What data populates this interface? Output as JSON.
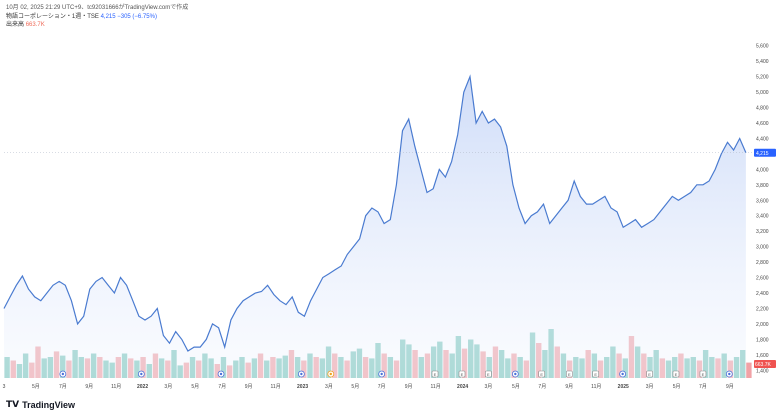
{
  "header": {
    "line1": "10月 02, 2025 21:29 UTC+9、tc92031666がTradingView.comで作成",
    "symbol": "物語コーポレーション・1週・TSE",
    "legend_value": "4,215 −305 (−6.75%)",
    "volume_label": "出来高",
    "volume_value": "663.7K"
  },
  "footer": {
    "logo_text": "TradingView",
    "logo_icon": "tv-logo-icon"
  },
  "colors": {
    "line": "#4a7bd0",
    "area_top": "#c9d8f7",
    "area_bottom": "#f2f6fe",
    "vol_up": "#7fc8bd",
    "vol_down": "#f1a2a6",
    "last_price_bg": "#2962ff",
    "last_vol_bg": "#ef5350"
  },
  "chart_data": {
    "type": "area",
    "ylim": [
      1300,
      5700
    ],
    "y_ticks": [
      "1,400",
      "1,600",
      "1,800",
      "2,000",
      "2,200",
      "2,400",
      "2,600",
      "2,800",
      "3,000",
      "3,200",
      "3,400",
      "3,600",
      "3,800",
      "4,000",
      "4,200",
      "4,400",
      "4,600",
      "4,800",
      "5,000",
      "5,200",
      "5,400",
      "5,600"
    ],
    "y_tick_values": [
      1400,
      1600,
      1800,
      2000,
      2200,
      2400,
      2600,
      2800,
      3000,
      3200,
      3400,
      3600,
      3800,
      4000,
      4200,
      4400,
      4600,
      4800,
      5000,
      5200,
      5400,
      5600
    ],
    "last_price_label": "4,215",
    "last_price": 4215,
    "last_volume_label": "663.7K",
    "x_labels": [
      {
        "t": 0.0,
        "text": "3"
      },
      {
        "t": 5.2,
        "text": "5月"
      },
      {
        "t": 9.6,
        "text": "7月"
      },
      {
        "t": 13.9,
        "text": "9月"
      },
      {
        "t": 18.3,
        "text": "11月"
      },
      {
        "t": 22.6,
        "text": "2022",
        "bold": true
      },
      {
        "t": 26.8,
        "text": "3月"
      },
      {
        "t": 31.2,
        "text": "5月"
      },
      {
        "t": 35.6,
        "text": "7月"
      },
      {
        "t": 39.9,
        "text": "9月"
      },
      {
        "t": 44.3,
        "text": "11月"
      },
      {
        "t": 48.7,
        "text": "2023",
        "bold": true
      },
      {
        "t": 53.0,
        "text": "3月"
      },
      {
        "t": 57.3,
        "text": "5月"
      },
      {
        "t": 61.6,
        "text": "7月"
      },
      {
        "t": 66.0,
        "text": "9月"
      },
      {
        "t": 70.4,
        "text": "11月"
      },
      {
        "t": 74.8,
        "text": "2024",
        "bold": true
      },
      {
        "t": 79.0,
        "text": "3月"
      },
      {
        "t": 83.5,
        "text": "5月"
      },
      {
        "t": 87.8,
        "text": "7月"
      },
      {
        "t": 92.2,
        "text": "9月"
      },
      {
        "t": 96.6,
        "text": "11月"
      },
      {
        "t": 101.0,
        "text": "2025",
        "bold": true
      },
      {
        "t": 105.3,
        "text": "3月"
      },
      {
        "t": 109.7,
        "text": "5月"
      },
      {
        "t": 114.0,
        "text": "7月"
      },
      {
        "t": 118.4,
        "text": "9月"
      }
    ],
    "t_range": [
      0,
      122
    ],
    "event_markers": [
      {
        "t": 9.6,
        "kind": "D"
      },
      {
        "t": 22.4,
        "kind": "D"
      },
      {
        "t": 35.4,
        "kind": "D"
      },
      {
        "t": 48.5,
        "kind": "D"
      },
      {
        "t": 53.3,
        "kind": "S"
      },
      {
        "t": 61.6,
        "kind": "D"
      },
      {
        "t": 70.3,
        "kind": "E"
      },
      {
        "t": 74.7,
        "kind": "E"
      },
      {
        "t": 79.0,
        "kind": "E"
      },
      {
        "t": 83.4,
        "kind": "D"
      },
      {
        "t": 87.7,
        "kind": "E"
      },
      {
        "t": 92.2,
        "kind": "E"
      },
      {
        "t": 96.5,
        "kind": "E"
      },
      {
        "t": 100.9,
        "kind": "D"
      },
      {
        "t": 105.3,
        "kind": "E"
      },
      {
        "t": 109.6,
        "kind": "E"
      },
      {
        "t": 114.0,
        "kind": "E"
      },
      {
        "t": 118.3,
        "kind": "D"
      }
    ],
    "series": [
      {
        "points": [
          [
            0,
            2200
          ],
          [
            1,
            2350
          ],
          [
            2,
            2500
          ],
          [
            3,
            2620
          ],
          [
            4,
            2450
          ],
          [
            5,
            2350
          ],
          [
            6,
            2300
          ],
          [
            7,
            2400
          ],
          [
            8,
            2500
          ],
          [
            9,
            2550
          ],
          [
            10,
            2500
          ],
          [
            11,
            2300
          ],
          [
            12,
            2000
          ],
          [
            13,
            2100
          ],
          [
            14,
            2450
          ],
          [
            15,
            2550
          ],
          [
            16,
            2600
          ],
          [
            17,
            2500
          ],
          [
            18,
            2400
          ],
          [
            19,
            2600
          ],
          [
            20,
            2500
          ],
          [
            21,
            2300
          ],
          [
            22,
            2100
          ],
          [
            23,
            2050
          ],
          [
            24,
            2100
          ],
          [
            25,
            2200
          ],
          [
            26,
            1850
          ],
          [
            27,
            1750
          ],
          [
            28,
            1900
          ],
          [
            29,
            1800
          ],
          [
            30,
            1650
          ],
          [
            31,
            1700
          ],
          [
            32,
            1700
          ],
          [
            33,
            1800
          ],
          [
            34,
            2000
          ],
          [
            35,
            1950
          ],
          [
            36,
            1700
          ],
          [
            37,
            2050
          ],
          [
            38,
            2200
          ],
          [
            39,
            2300
          ],
          [
            40,
            2350
          ],
          [
            41,
            2400
          ],
          [
            42,
            2420
          ],
          [
            43,
            2500
          ],
          [
            44,
            2380
          ],
          [
            45,
            2300
          ],
          [
            46,
            2250
          ],
          [
            47,
            2350
          ],
          [
            48,
            2150
          ],
          [
            49,
            2100
          ],
          [
            50,
            2300
          ],
          [
            51,
            2450
          ],
          [
            52,
            2600
          ],
          [
            53,
            2650
          ],
          [
            54,
            2700
          ],
          [
            55,
            2750
          ],
          [
            56,
            2900
          ],
          [
            57,
            3000
          ],
          [
            58,
            3100
          ],
          [
            59,
            3400
          ],
          [
            60,
            3500
          ],
          [
            61,
            3450
          ],
          [
            62,
            3300
          ],
          [
            63,
            3350
          ],
          [
            64,
            3800
          ],
          [
            65,
            4500
          ],
          [
            66,
            4650
          ],
          [
            67,
            4300
          ],
          [
            68,
            4000
          ],
          [
            69,
            3700
          ],
          [
            70,
            3750
          ],
          [
            71,
            4000
          ],
          [
            72,
            3900
          ],
          [
            73,
            4100
          ],
          [
            74,
            4450
          ],
          [
            75,
            5000
          ],
          [
            76,
            5200
          ],
          [
            77,
            4600
          ],
          [
            78,
            4750
          ],
          [
            79,
            4600
          ],
          [
            80,
            4650
          ],
          [
            81,
            4550
          ],
          [
            82,
            4300
          ],
          [
            83,
            3800
          ],
          [
            84,
            3500
          ],
          [
            85,
            3300
          ],
          [
            86,
            3400
          ],
          [
            87,
            3450
          ],
          [
            88,
            3550
          ],
          [
            89,
            3300
          ],
          [
            90,
            3400
          ],
          [
            91,
            3500
          ],
          [
            92,
            3600
          ],
          [
            93,
            3850
          ],
          [
            94,
            3650
          ],
          [
            95,
            3550
          ],
          [
            96,
            3550
          ],
          [
            97,
            3600
          ],
          [
            98,
            3650
          ],
          [
            99,
            3500
          ],
          [
            100,
            3450
          ],
          [
            101,
            3250
          ],
          [
            102,
            3300
          ],
          [
            103,
            3350
          ],
          [
            104,
            3250
          ],
          [
            105,
            3300
          ],
          [
            106,
            3350
          ],
          [
            107,
            3450
          ],
          [
            108,
            3550
          ],
          [
            109,
            3650
          ],
          [
            110,
            3600
          ],
          [
            111,
            3650
          ],
          [
            112,
            3700
          ],
          [
            113,
            3800
          ],
          [
            114,
            3800
          ],
          [
            115,
            3850
          ],
          [
            116,
            4000
          ],
          [
            117,
            4200
          ],
          [
            118,
            4350
          ],
          [
            119,
            4250
          ],
          [
            120,
            4400
          ],
          [
            121,
            4215
          ]
        ]
      }
    ],
    "volume": {
      "max": 100,
      "bars": [
        [
          30,
          1
        ],
        [
          25,
          0
        ],
        [
          20,
          1
        ],
        [
          35,
          1
        ],
        [
          22,
          0
        ],
        [
          45,
          0
        ],
        [
          28,
          1
        ],
        [
          30,
          1
        ],
        [
          38,
          0
        ],
        [
          32,
          1
        ],
        [
          25,
          0
        ],
        [
          40,
          1
        ],
        [
          30,
          1
        ],
        [
          28,
          0
        ],
        [
          35,
          1
        ],
        [
          30,
          0
        ],
        [
          25,
          1
        ],
        [
          22,
          1
        ],
        [
          30,
          0
        ],
        [
          35,
          1
        ],
        [
          28,
          0
        ],
        [
          25,
          1
        ],
        [
          30,
          0
        ],
        [
          20,
          1
        ],
        [
          35,
          0
        ],
        [
          28,
          1
        ],
        [
          25,
          0
        ],
        [
          40,
          1
        ],
        [
          18,
          1
        ],
        [
          22,
          0
        ],
        [
          30,
          1
        ],
        [
          25,
          0
        ],
        [
          35,
          1
        ],
        [
          28,
          1
        ],
        [
          20,
          0
        ],
        [
          30,
          1
        ],
        [
          18,
          0
        ],
        [
          25,
          1
        ],
        [
          30,
          1
        ],
        [
          22,
          0
        ],
        [
          28,
          1
        ],
        [
          35,
          0
        ],
        [
          25,
          1
        ],
        [
          30,
          0
        ],
        [
          28,
          1
        ],
        [
          32,
          1
        ],
        [
          40,
          0
        ],
        [
          30,
          1
        ],
        [
          25,
          0
        ],
        [
          35,
          1
        ],
        [
          30,
          0
        ],
        [
          28,
          1
        ],
        [
          45,
          1
        ],
        [
          35,
          0
        ],
        [
          30,
          1
        ],
        [
          25,
          0
        ],
        [
          38,
          1
        ],
        [
          42,
          1
        ],
        [
          30,
          0
        ],
        [
          28,
          1
        ],
        [
          50,
          1
        ],
        [
          35,
          0
        ],
        [
          30,
          1
        ],
        [
          25,
          0
        ],
        [
          55,
          1
        ],
        [
          48,
          1
        ],
        [
          40,
          0
        ],
        [
          30,
          1
        ],
        [
          35,
          0
        ],
        [
          45,
          1
        ],
        [
          52,
          1
        ],
        [
          40,
          0
        ],
        [
          35,
          1
        ],
        [
          60,
          1
        ],
        [
          42,
          0
        ],
        [
          55,
          1
        ],
        [
          48,
          1
        ],
        [
          38,
          0
        ],
        [
          30,
          1
        ],
        [
          45,
          0
        ],
        [
          40,
          1
        ],
        [
          28,
          1
        ],
        [
          35,
          0
        ],
        [
          30,
          1
        ],
        [
          25,
          0
        ],
        [
          65,
          1
        ],
        [
          50,
          0
        ],
        [
          40,
          1
        ],
        [
          70,
          1
        ],
        [
          45,
          0
        ],
        [
          35,
          1
        ],
        [
          25,
          0
        ],
        [
          30,
          1
        ],
        [
          28,
          1
        ],
        [
          40,
          0
        ],
        [
          35,
          1
        ],
        [
          25,
          0
        ],
        [
          30,
          1
        ],
        [
          45,
          1
        ],
        [
          35,
          0
        ],
        [
          28,
          1
        ],
        [
          60,
          0
        ],
        [
          45,
          1
        ],
        [
          35,
          0
        ],
        [
          30,
          1
        ],
        [
          40,
          1
        ],
        [
          28,
          0
        ],
        [
          25,
          1
        ],
        [
          30,
          1
        ],
        [
          35,
          0
        ],
        [
          28,
          1
        ],
        [
          30,
          1
        ],
        [
          25,
          0
        ],
        [
          40,
          1
        ],
        [
          30,
          1
        ],
        [
          28,
          0
        ],
        [
          35,
          1
        ],
        [
          25,
          0
        ],
        [
          30,
          1
        ],
        [
          40,
          1
        ],
        [
          22,
          0
        ]
      ]
    }
  }
}
